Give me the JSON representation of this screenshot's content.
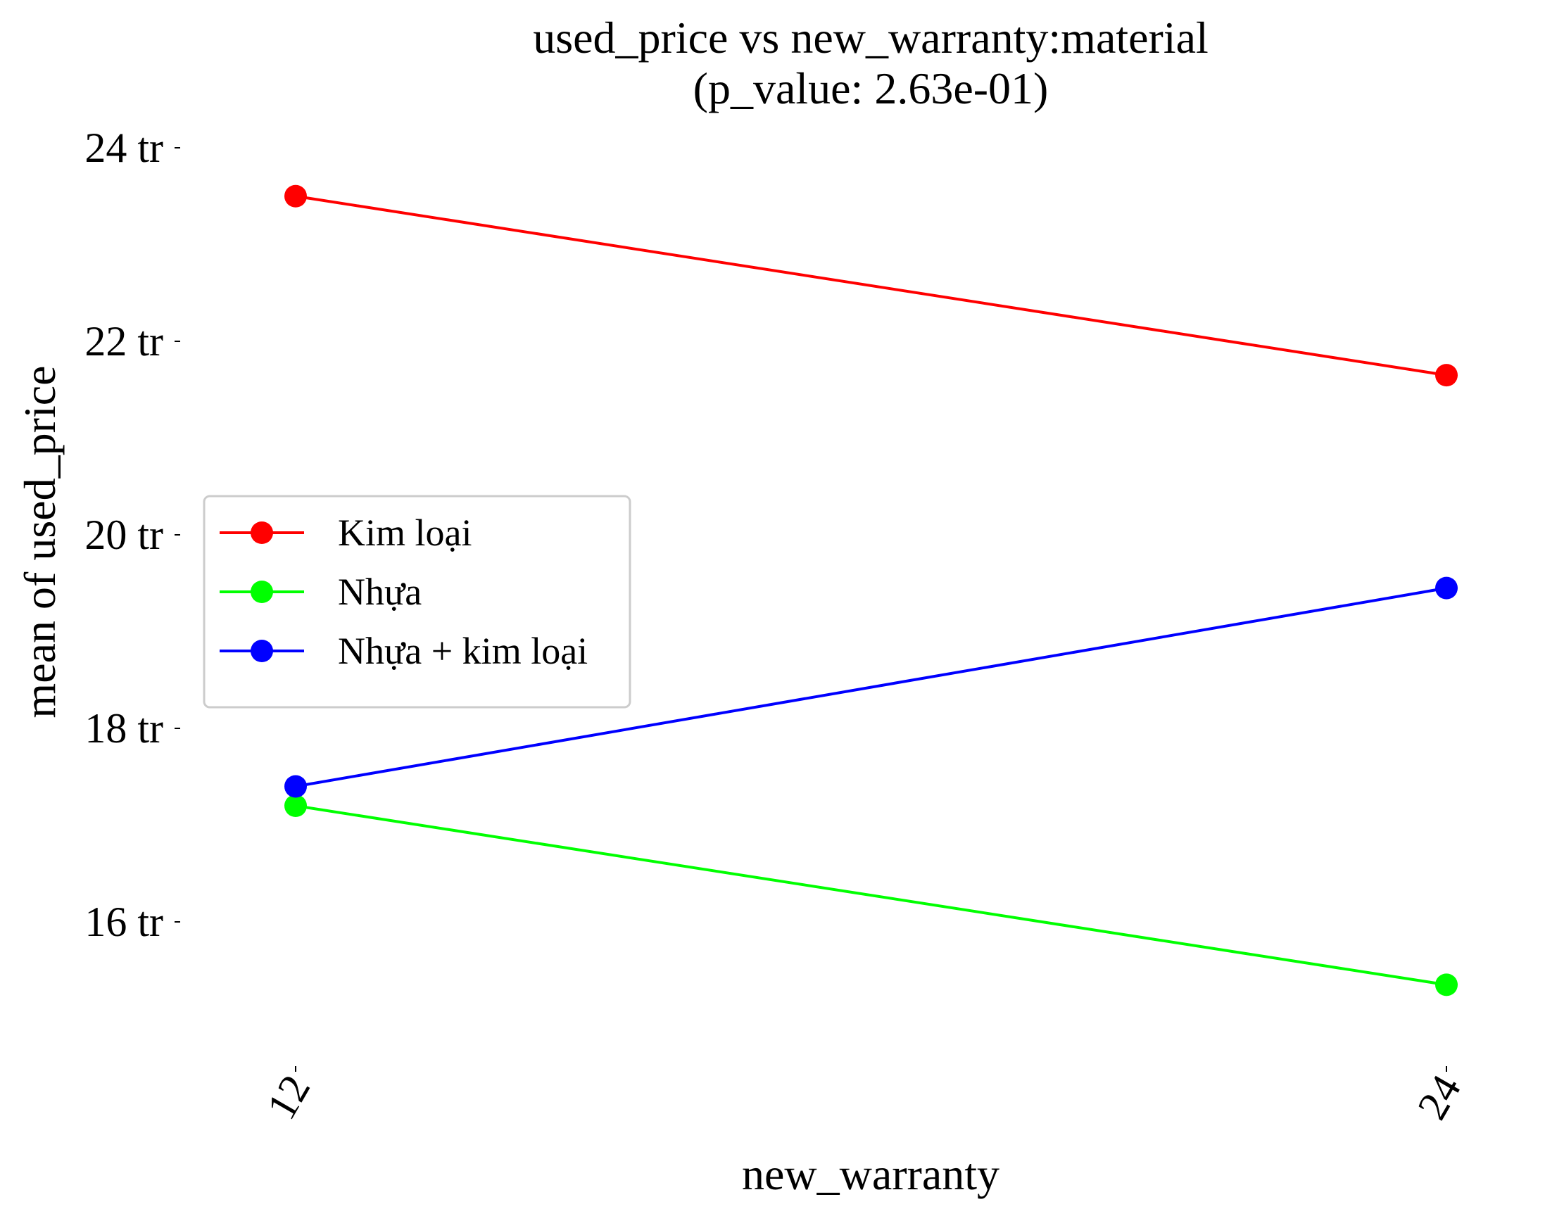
{
  "chart_data": {
    "type": "line",
    "title": "used_price vs new_warranty:material",
    "subtitle": "(p_value: 2.63e-01)",
    "xlabel": "new_warranty",
    "ylabel": "mean of used_price",
    "categories": [
      "12",
      "24"
    ],
    "y_ticks": [
      {
        "value": 16,
        "label": "16 tr"
      },
      {
        "value": 18,
        "label": "18 tr"
      },
      {
        "value": 20,
        "label": "20 tr"
      },
      {
        "value": 22,
        "label": "22 tr"
      },
      {
        "value": 24,
        "label": "24 tr"
      }
    ],
    "ylim": [
      14.4,
      24.6
    ],
    "grid": false,
    "legend_position": "center-left",
    "series": [
      {
        "name": "Kim loại",
        "color": "#ff0000",
        "values": [
          23.5,
          21.65
        ]
      },
      {
        "name": "Nhựa",
        "color": "#00ff00",
        "values": [
          17.2,
          15.35
        ]
      },
      {
        "name": "Nhựa + kim loại",
        "color": "#0000ff",
        "values": [
          17.4,
          19.45
        ]
      }
    ]
  }
}
